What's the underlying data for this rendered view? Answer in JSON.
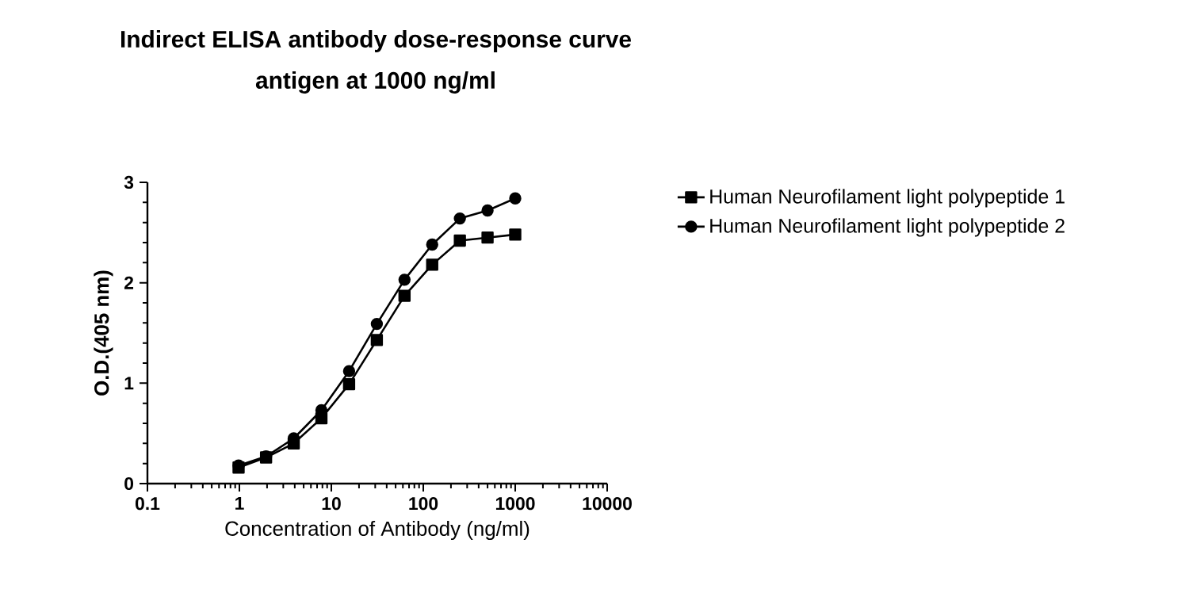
{
  "chart_data": {
    "type": "line",
    "title": "Indirect ELISA antibody dose-response curve",
    "subtitle": "antigen at 1000 ng/ml",
    "xlabel": "Concentration of Antibody (ng/ml)",
    "ylabel": "O.D.(405 nm)",
    "x": [
      0.98,
      1.95,
      3.9,
      7.8,
      15.6,
      31.25,
      62.5,
      125,
      250,
      500,
      1000
    ],
    "series": [
      {
        "name": "Human Neurofilament light polypeptide 1",
        "color": "#000000",
        "marker": "square",
        "values": [
          0.16,
          0.26,
          0.4,
          0.65,
          0.99,
          1.43,
          1.87,
          2.18,
          2.42,
          2.45,
          2.48
        ]
      },
      {
        "name": "Human Neurofilament light polypeptide 2",
        "color": "#000000",
        "marker": "circle",
        "values": [
          0.18,
          0.27,
          0.45,
          0.73,
          1.12,
          1.59,
          2.03,
          2.38,
          2.64,
          2.72,
          2.84
        ]
      }
    ],
    "log": "x",
    "xlim": [
      0.1,
      10000
    ],
    "xticks": [
      0.1,
      1,
      10,
      100,
      1000,
      10000
    ],
    "ylim": [
      0,
      3
    ],
    "yticks": [
      0,
      1,
      2,
      3
    ],
    "legend": "right"
  }
}
